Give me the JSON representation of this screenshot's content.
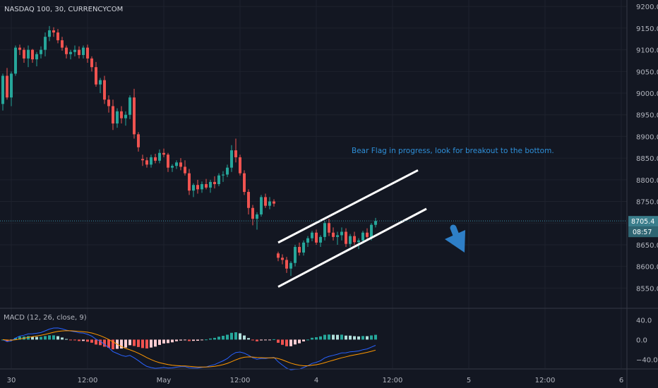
{
  "chart_data": {
    "type": "candlestick",
    "title": "NASDAQ 100, 30, CURRENCYCOM",
    "annotation": "Bear Flag in progress, look for breakout to the bottom.",
    "price_axis": {
      "ticks": [
        8550,
        8600,
        8650,
        8700,
        8750,
        8800,
        8850,
        8900,
        8950,
        9000,
        9050,
        9100,
        9150,
        9200
      ],
      "tick_labels": [
        "8550.0",
        "8600.0",
        "8650.0",
        "8700.0",
        "8750.0",
        "8800.0",
        "8850.0",
        "8900.0",
        "8950.0",
        "9000.0",
        "9050.0",
        "9100.0",
        "9150.0",
        "9200.0"
      ],
      "ylim": [
        8505,
        9215
      ],
      "last_price": "8705.4",
      "countdown": "08:57"
    },
    "time_axis": {
      "labels": [
        "30",
        "12:00",
        "May",
        "12:00",
        "4",
        "12:00",
        "5",
        "12:00",
        "6"
      ],
      "bar_index": [
        2,
        20,
        38,
        56,
        74,
        92,
        110,
        128,
        146
      ]
    },
    "candles": [
      [
        8975,
        9045,
        8960,
        9040
      ],
      [
        9040,
        9058,
        8985,
        8990
      ],
      [
        8990,
        9050,
        8970,
        9045
      ],
      [
        9045,
        9110,
        9040,
        9105
      ],
      [
        9105,
        9112,
        9088,
        9100
      ],
      [
        9100,
        9105,
        9070,
        9080
      ],
      [
        9080,
        9110,
        9060,
        9100
      ],
      [
        9100,
        9102,
        9070,
        9078
      ],
      [
        9078,
        9095,
        9062,
        9090
      ],
      [
        9090,
        9108,
        9080,
        9100
      ],
      [
        9100,
        9140,
        9085,
        9130
      ],
      [
        9130,
        9155,
        9120,
        9145
      ],
      [
        9145,
        9152,
        9130,
        9140
      ],
      [
        9140,
        9148,
        9115,
        9122
      ],
      [
        9122,
        9130,
        9098,
        9105
      ],
      [
        9105,
        9110,
        9080,
        9090
      ],
      [
        9090,
        9100,
        9078,
        9095
      ],
      [
        9095,
        9110,
        9085,
        9100
      ],
      [
        9100,
        9108,
        9080,
        9088
      ],
      [
        9088,
        9110,
        9080,
        9105
      ],
      [
        9105,
        9112,
        9070,
        9080
      ],
      [
        9080,
        9085,
        9050,
        9060
      ],
      [
        9060,
        9072,
        9015,
        9020
      ],
      [
        9020,
        9035,
        9000,
        9030
      ],
      [
        9030,
        9040,
        8975,
        8985
      ],
      [
        8985,
        8995,
        8955,
        8970
      ],
      [
        8970,
        8985,
        8915,
        8930
      ],
      [
        8930,
        8965,
        8920,
        8958
      ],
      [
        8958,
        8970,
        8930,
        8942
      ],
      [
        8942,
        8958,
        8925,
        8950
      ],
      [
        8950,
        8995,
        8940,
        8990
      ],
      [
        8990,
        9010,
        8895,
        8905
      ],
      [
        8905,
        8910,
        8865,
        8875
      ],
      [
        8848,
        8858,
        8832,
        8845
      ],
      [
        8845,
        8852,
        8828,
        8835
      ],
      [
        8835,
        8858,
        8828,
        8852
      ],
      [
        8852,
        8860,
        8838,
        8844
      ],
      [
        8844,
        8870,
        8838,
        8862
      ],
      [
        8862,
        8872,
        8852,
        8858
      ],
      [
        8858,
        8862,
        8818,
        8828
      ],
      [
        8828,
        8836,
        8818,
        8832
      ],
      [
        8832,
        8845,
        8825,
        8840
      ],
      [
        8840,
        8850,
        8822,
        8830
      ],
      [
        8830,
        8845,
        8810,
        8815
      ],
      [
        8815,
        8825,
        8765,
        8775
      ],
      [
        8775,
        8792,
        8760,
        8788
      ],
      [
        8788,
        8800,
        8768,
        8778
      ],
      [
        8778,
        8796,
        8770,
        8790
      ],
      [
        8790,
        8802,
        8778,
        8782
      ],
      [
        8782,
        8800,
        8770,
        8795
      ],
      [
        8795,
        8808,
        8780,
        8790
      ],
      [
        8790,
        8815,
        8785,
        8810
      ],
      [
        8810,
        8820,
        8795,
        8812
      ],
      [
        8812,
        8835,
        8806,
        8828
      ],
      [
        8828,
        8880,
        8818,
        8868
      ],
      [
        8868,
        8895,
        8840,
        8852
      ],
      [
        8852,
        8858,
        8810,
        8815
      ],
      [
        8815,
        8822,
        8765,
        8772
      ],
      [
        8772,
        8778,
        8720,
        8735
      ],
      [
        8735,
        8742,
        8695,
        8710
      ],
      [
        8710,
        8725,
        8685,
        8720
      ],
      [
        8720,
        8765,
        8715,
        8760
      ],
      [
        8760,
        8768,
        8735,
        8740
      ],
      [
        8740,
        8760,
        8732,
        8750
      ],
      [
        8750,
        8755,
        8738,
        8745
      ],
      [
        8630,
        8634,
        8612,
        8620
      ],
      [
        8620,
        8628,
        8605,
        8615
      ],
      [
        8615,
        8622,
        8585,
        8595
      ],
      [
        8595,
        8612,
        8578,
        8608
      ],
      [
        8608,
        8650,
        8600,
        8645
      ],
      [
        8645,
        8655,
        8625,
        8632
      ],
      [
        8632,
        8660,
        8625,
        8655
      ],
      [
        8655,
        8670,
        8645,
        8665
      ],
      [
        8665,
        8682,
        8658,
        8678
      ],
      [
        8678,
        8685,
        8650,
        8655
      ],
      [
        8655,
        8672,
        8645,
        8668
      ],
      [
        8668,
        8705,
        8660,
        8700
      ],
      [
        8700,
        8710,
        8670,
        8678
      ],
      [
        8678,
        8690,
        8660,
        8668
      ],
      [
        8668,
        8680,
        8650,
        8672
      ],
      [
        8672,
        8690,
        8660,
        8680
      ],
      [
        8680,
        8688,
        8645,
        8652
      ],
      [
        8652,
        8675,
        8645,
        8670
      ],
      [
        8670,
        8680,
        8650,
        8656
      ],
      [
        8656,
        8665,
        8640,
        8660
      ],
      [
        8660,
        8682,
        8655,
        8678
      ],
      [
        8678,
        8688,
        8660,
        8668
      ],
      [
        8668,
        8700,
        8660,
        8696
      ],
      [
        8696,
        8712,
        8690,
        8705
      ]
    ],
    "channel": {
      "upper": [
        [
          65,
          8655
        ],
        [
          98,
          8822
        ]
      ],
      "lower": [
        [
          65,
          8553
        ],
        [
          100,
          8733
        ]
      ]
    },
    "macd": {
      "label": "MACD (12, 26, close, 9)",
      "ylim": [
        -58,
        62
      ],
      "ticks": [
        40,
        0,
        -40
      ],
      "tick_labels": [
        "40.0",
        "0.0",
        "−40.0"
      ]
    },
    "colors": {
      "background": "#131722",
      "up": "#26a69a",
      "down": "#ef5350",
      "grid": "#1e222d",
      "price_tag": "#3b7e8c",
      "annotation": "#2e8fd8",
      "macd_line": "#2962ff",
      "signal_line": "#ff9800"
    }
  }
}
